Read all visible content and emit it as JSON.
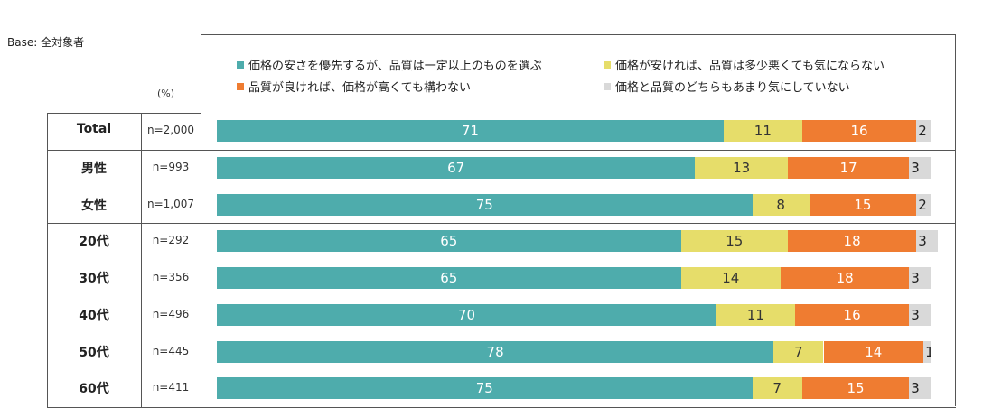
{
  "base_label": "Base: 全対象者",
  "unit_label": "(%)",
  "chart_data": {
    "type": "bar",
    "orientation": "horizontal",
    "stacked": true,
    "legend_position": "top",
    "xlim": [
      0,
      100
    ],
    "legend": [
      {
        "name": "価格の安さを優先するが、品質は一定以上のものを選ぶ",
        "color": "#4eacac"
      },
      {
        "name": "価格が安ければ、品質は多少悪くても気にならない",
        "color": "#e6dd6a"
      },
      {
        "name": "品質が良ければ、価格が高くても構わない",
        "color": "#ef7c31"
      },
      {
        "name": "価格と品質のどちらもあまり気にしていない",
        "color": "#d9d9d9"
      }
    ],
    "categories": [
      "Total",
      "男性",
      "女性",
      "20代",
      "30代",
      "40代",
      "50代",
      "60代"
    ],
    "n": [
      "n=2,000",
      "n=993",
      "n=1,007",
      "n=292",
      "n=356",
      "n=496",
      "n=445",
      "n=411"
    ],
    "series": [
      {
        "name": "価格の安さを優先するが、品質は一定以上のものを選ぶ",
        "values": [
          71,
          67,
          75,
          65,
          65,
          70,
          78,
          75
        ]
      },
      {
        "name": "価格が安ければ、品質は多少悪くても気にならない",
        "values": [
          11,
          13,
          8,
          15,
          14,
          11,
          7,
          7
        ]
      },
      {
        "name": "品質が良ければ、価格が高くても構わない",
        "values": [
          16,
          17,
          15,
          18,
          18,
          16,
          14,
          15
        ]
      },
      {
        "name": "価格と品質のどちらもあまり気にしていない",
        "values": [
          2,
          3,
          2,
          3,
          3,
          3,
          1,
          3
        ]
      }
    ]
  }
}
